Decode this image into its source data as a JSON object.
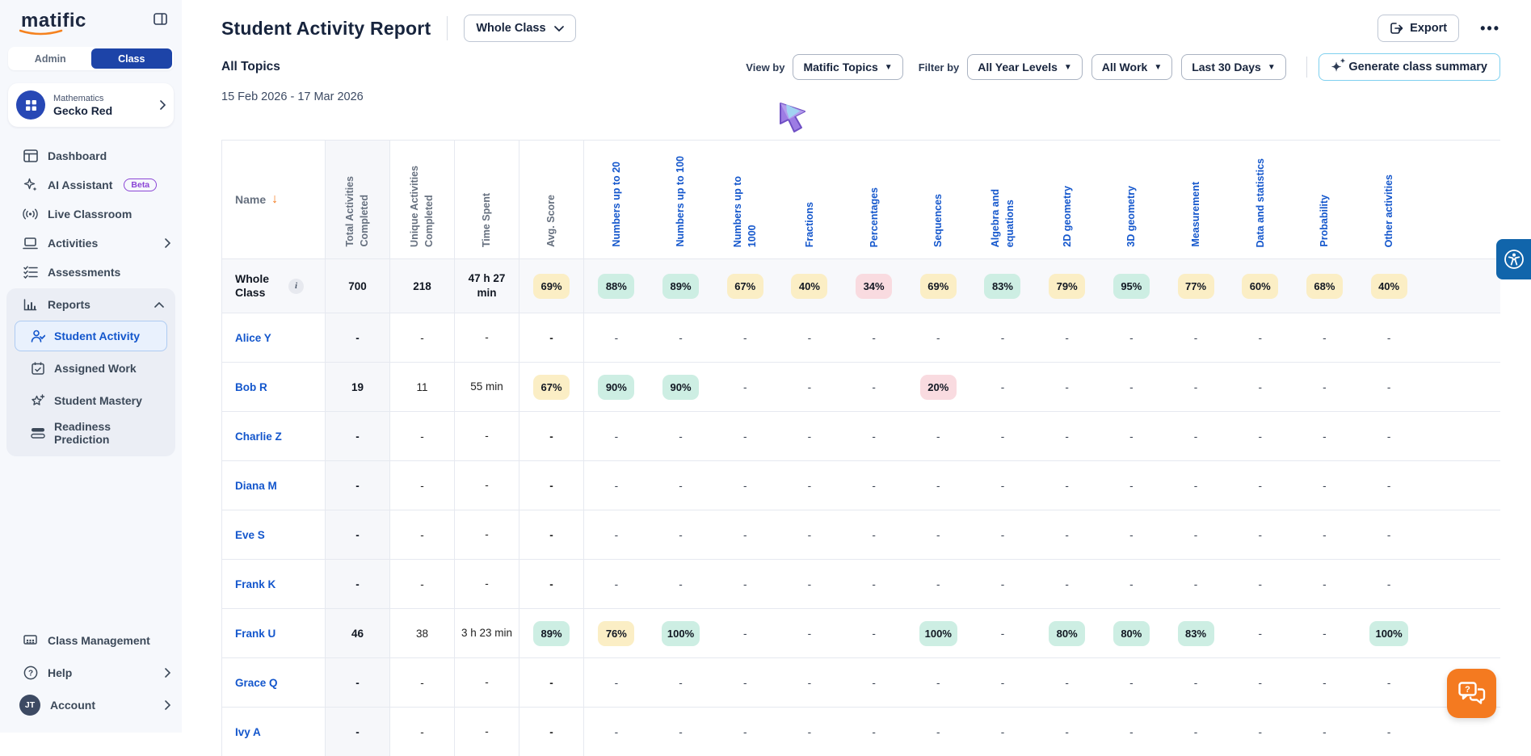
{
  "sidebar": {
    "logo": "matific",
    "toggle": {
      "admin": "Admin",
      "class": "Class"
    },
    "class_card": {
      "subject": "Mathematics",
      "class_name": "Gecko Red"
    },
    "nav": [
      {
        "label": "Dashboard"
      },
      {
        "label": "AI Assistant",
        "badge": "Beta"
      },
      {
        "label": "Live Classroom"
      },
      {
        "label": "Activities"
      },
      {
        "label": "Assessments"
      }
    ],
    "reports": {
      "label": "Reports",
      "items": [
        "Student Activity",
        "Assigned Work",
        "Student Mastery",
        "Readiness Prediction"
      ],
      "active": "Student Activity"
    },
    "bottom": {
      "class_management": "Class Management",
      "help": "Help",
      "account": "Account",
      "avatar_initials": "JT"
    }
  },
  "header": {
    "title": "Student Activity Report",
    "class_selector": "Whole Class",
    "export_label": "Export",
    "more_label": "•••",
    "subtitle": "All Topics",
    "date_range": "15 Feb 2026 - 17 Mar 2026",
    "view_by_label": "View by",
    "filter_by_label": "Filter by",
    "filters": {
      "view": "Matific Topics",
      "year": "All Year Levels",
      "work": "All Work",
      "range": "Last 30 Days"
    },
    "generate_label": "Generate class summary"
  },
  "table": {
    "name_header": "Name",
    "info_icon": "i",
    "metric_headers": [
      "Total Activities\nCompleted",
      "Unique Activities\nCompleted",
      "Time Spent",
      "Avg. Score"
    ],
    "topic_headers": [
      "Numbers up to 20",
      "Numbers up to 100",
      "Numbers up to\n1000",
      "Fractions",
      "Percentages",
      "Sequences",
      "Algebra and\nequations",
      "2D geometry",
      "3D geometry",
      "Measurement",
      "Data and statistics",
      "Probability",
      "Other activities"
    ],
    "rows": [
      {
        "name": "Whole Class",
        "type": "whole",
        "total": "700",
        "unique": "218",
        "time": "47 h 27 min",
        "avg": {
          "v": "69%",
          "c": "yellow"
        },
        "topics": [
          {
            "v": "88%",
            "c": "teal"
          },
          {
            "v": "89%",
            "c": "teal"
          },
          {
            "v": "67%",
            "c": "yellow"
          },
          {
            "v": "40%",
            "c": "yellow"
          },
          {
            "v": "34%",
            "c": "pink"
          },
          {
            "v": "69%",
            "c": "yellow"
          },
          {
            "v": "83%",
            "c": "teal"
          },
          {
            "v": "79%",
            "c": "yellow"
          },
          {
            "v": "95%",
            "c": "teal"
          },
          {
            "v": "77%",
            "c": "yellow"
          },
          {
            "v": "60%",
            "c": "yellow"
          },
          {
            "v": "68%",
            "c": "yellow"
          },
          {
            "v": "40%",
            "c": "yellow"
          }
        ]
      },
      {
        "name": "Alice Y",
        "type": "student",
        "total": "-",
        "unique": "-",
        "time": "-",
        "avg": "-",
        "topics": [
          "-",
          "-",
          "-",
          "-",
          "-",
          "-",
          "-",
          "-",
          "-",
          "-",
          "-",
          "-",
          "-"
        ]
      },
      {
        "name": "Bob R",
        "type": "student",
        "total": "19",
        "unique": "11",
        "time": "55 min",
        "avg": {
          "v": "67%",
          "c": "yellow"
        },
        "topics": [
          {
            "v": "90%",
            "c": "teal"
          },
          {
            "v": "90%",
            "c": "teal"
          },
          "-",
          "-",
          "-",
          {
            "v": "20%",
            "c": "pink"
          },
          "-",
          "-",
          "-",
          "-",
          "-",
          "-",
          "-"
        ]
      },
      {
        "name": "Charlie Z",
        "type": "student",
        "total": "-",
        "unique": "-",
        "time": "-",
        "avg": "-",
        "topics": [
          "-",
          "-",
          "-",
          "-",
          "-",
          "-",
          "-",
          "-",
          "-",
          "-",
          "-",
          "-",
          "-"
        ]
      },
      {
        "name": "Diana M",
        "type": "student",
        "total": "-",
        "unique": "-",
        "time": "-",
        "avg": "-",
        "topics": [
          "-",
          "-",
          "-",
          "-",
          "-",
          "-",
          "-",
          "-",
          "-",
          "-",
          "-",
          "-",
          "-"
        ]
      },
      {
        "name": "Eve S",
        "type": "student",
        "total": "-",
        "unique": "-",
        "time": "-",
        "avg": "-",
        "topics": [
          "-",
          "-",
          "-",
          "-",
          "-",
          "-",
          "-",
          "-",
          "-",
          "-",
          "-",
          "-",
          "-"
        ]
      },
      {
        "name": "Frank K",
        "type": "student",
        "total": "-",
        "unique": "-",
        "time": "-",
        "avg": "-",
        "topics": [
          "-",
          "-",
          "-",
          "-",
          "-",
          "-",
          "-",
          "-",
          "-",
          "-",
          "-",
          "-",
          "-"
        ]
      },
      {
        "name": "Frank U",
        "type": "student",
        "total": "46",
        "unique": "38",
        "time": "3 h 23 min",
        "avg": {
          "v": "89%",
          "c": "teal"
        },
        "topics": [
          {
            "v": "76%",
            "c": "yellow"
          },
          {
            "v": "100%",
            "c": "teal"
          },
          "-",
          "-",
          "-",
          {
            "v": "100%",
            "c": "teal"
          },
          "-",
          {
            "v": "80%",
            "c": "teal"
          },
          {
            "v": "80%",
            "c": "teal"
          },
          {
            "v": "83%",
            "c": "teal"
          },
          "-",
          "-",
          {
            "v": "100%",
            "c": "teal"
          }
        ]
      },
      {
        "name": "Grace Q",
        "type": "student",
        "total": "-",
        "unique": "-",
        "time": "-",
        "avg": "-",
        "topics": [
          "-",
          "-",
          "-",
          "-",
          "-",
          "-",
          "-",
          "-",
          "-",
          "-",
          "-",
          "-",
          "-"
        ]
      },
      {
        "name": "Ivy A",
        "type": "student",
        "total": "-",
        "unique": "-",
        "time": "-",
        "avg": "-",
        "topics": [
          "-",
          "-",
          "-",
          "-",
          "-",
          "-",
          "-",
          "-",
          "-",
          "-",
          "-",
          "-",
          "-"
        ]
      }
    ]
  },
  "colors": {
    "badge_teal": "#cdeee3",
    "badge_yellow": "#fbeec5",
    "badge_pink": "#f9dbe0",
    "topic_blue": "#1356cc",
    "brand_orange": "#f47b20",
    "nav_active_blue": "#1d44a8"
  }
}
